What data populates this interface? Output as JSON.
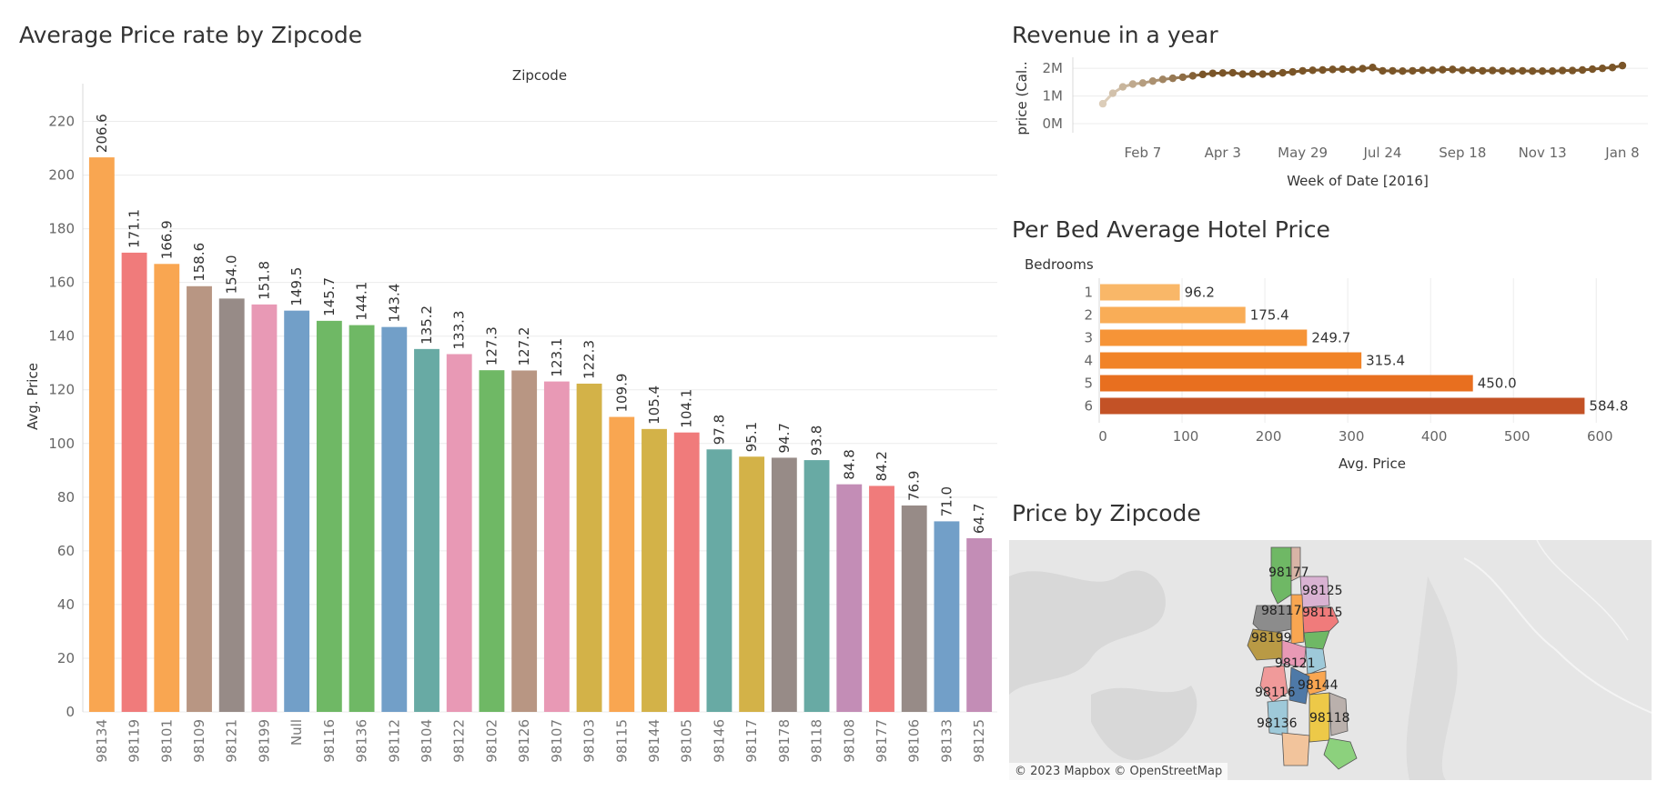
{
  "chart_data": [
    {
      "type": "bar",
      "title": "Average Price rate by Zipcode",
      "header": "Zipcode",
      "ylabel": "Avg. Price",
      "ylim": [
        0,
        230
      ],
      "yticks": [
        0,
        20,
        40,
        60,
        80,
        100,
        120,
        140,
        160,
        180,
        200,
        220
      ],
      "categories": [
        "98134",
        "98119",
        "98101",
        "98109",
        "98121",
        "98199",
        "Null",
        "98116",
        "98136",
        "98112",
        "98104",
        "98122",
        "98102",
        "98126",
        "98107",
        "98103",
        "98115",
        "98144",
        "98105",
        "98146",
        "98117",
        "98178",
        "98118",
        "98108",
        "98177",
        "98106",
        "98133",
        "98125"
      ],
      "values": [
        206.6,
        171.1,
        166.9,
        158.6,
        154.0,
        151.8,
        149.5,
        145.7,
        144.1,
        143.4,
        135.2,
        133.3,
        127.3,
        127.2,
        123.1,
        122.3,
        109.9,
        105.4,
        104.1,
        97.8,
        95.1,
        94.7,
        93.8,
        84.8,
        84.2,
        76.9,
        71.0,
        64.7
      ],
      "labels": [
        "206.6",
        "171.1",
        "166.9",
        "158.6",
        "154.0",
        "151.8",
        "149.5",
        "145.7",
        "144.1",
        "143.4",
        "135.2",
        "133.3",
        "127.3",
        "127.2",
        "123.1",
        "122.3",
        "109.9",
        "105.4",
        "104.1",
        "97.8",
        "95.1",
        "94.7",
        "93.8",
        "84.8",
        "84.2",
        "76.9",
        "71.0",
        "64.7"
      ],
      "colors": [
        "#f9a651",
        "#f07b7b",
        "#f9a651",
        "#b89683",
        "#978b87",
        "#e899b5",
        "#729fc8",
        "#6fb865",
        "#6fb865",
        "#729fc8",
        "#68aaa4",
        "#e899b5",
        "#6fb865",
        "#b89683",
        "#e899b5",
        "#d3b248",
        "#f9a651",
        "#d3b248",
        "#f07b7b",
        "#68aaa4",
        "#d3b248",
        "#978b87",
        "#68aaa4",
        "#c38db6",
        "#f07b7b",
        "#978b87",
        "#729fc8",
        "#c38db6"
      ]
    },
    {
      "type": "line",
      "title": "Revenue in a year",
      "xlabel": "Week of Date [2016]",
      "ylabel": "price (Cal..",
      "ylim": [
        0,
        2.4
      ],
      "yticks": [
        {
          "value": 0,
          "label": "0M"
        },
        {
          "value": 1,
          "label": "1M"
        },
        {
          "value": 2,
          "label": "2M"
        }
      ],
      "xticks": [
        "Feb 7",
        "Apr 3",
        "May 29",
        "Jul 24",
        "Sep 18",
        "Nov 13",
        "Jan 8"
      ],
      "x_tick_weeks": [
        5,
        13,
        21,
        29,
        37,
        45,
        53
      ],
      "values": [
        0.72,
        1.1,
        1.33,
        1.43,
        1.47,
        1.54,
        1.6,
        1.64,
        1.68,
        1.73,
        1.78,
        1.82,
        1.83,
        1.84,
        1.79,
        1.8,
        1.79,
        1.8,
        1.84,
        1.87,
        1.91,
        1.93,
        1.94,
        1.96,
        1.97,
        1.95,
        1.99,
        2.03,
        1.91,
        1.91,
        1.9,
        1.91,
        1.93,
        1.93,
        1.95,
        1.96,
        1.93,
        1.93,
        1.91,
        1.92,
        1.91,
        1.9,
        1.91,
        1.9,
        1.9,
        1.9,
        1.92,
        1.92,
        1.94,
        1.97,
        2.0,
        2.03,
        2.1
      ]
    },
    {
      "type": "bar",
      "orientation": "horizontal",
      "title": "Per Bed Average Hotel Price",
      "header": "Bedrooms",
      "xlabel": "Avg. Price",
      "xlim": [
        0,
        670
      ],
      "xticks": [
        0,
        100,
        200,
        300,
        400,
        500,
        600
      ],
      "categories": [
        "1",
        "2",
        "3",
        "4",
        "5",
        "6"
      ],
      "values": [
        96.2,
        175.4,
        249.7,
        315.4,
        450.0,
        584.8
      ],
      "labels": [
        "96.2",
        "175.4",
        "249.7",
        "315.4",
        "450.0",
        "584.8"
      ],
      "colors": [
        "#f9b768",
        "#f9ad57",
        "#f69437",
        "#f18327",
        "#e86f1f",
        "#c35226"
      ]
    }
  ],
  "map": {
    "title": "Price by Zipcode",
    "attribution": "© 2023 Mapbox © OpenStreetMap",
    "zip_labels": [
      "98177",
      "98125",
      "98117",
      "98115",
      "98199",
      "98121",
      "98116",
      "98144",
      "98136",
      "98118"
    ]
  }
}
